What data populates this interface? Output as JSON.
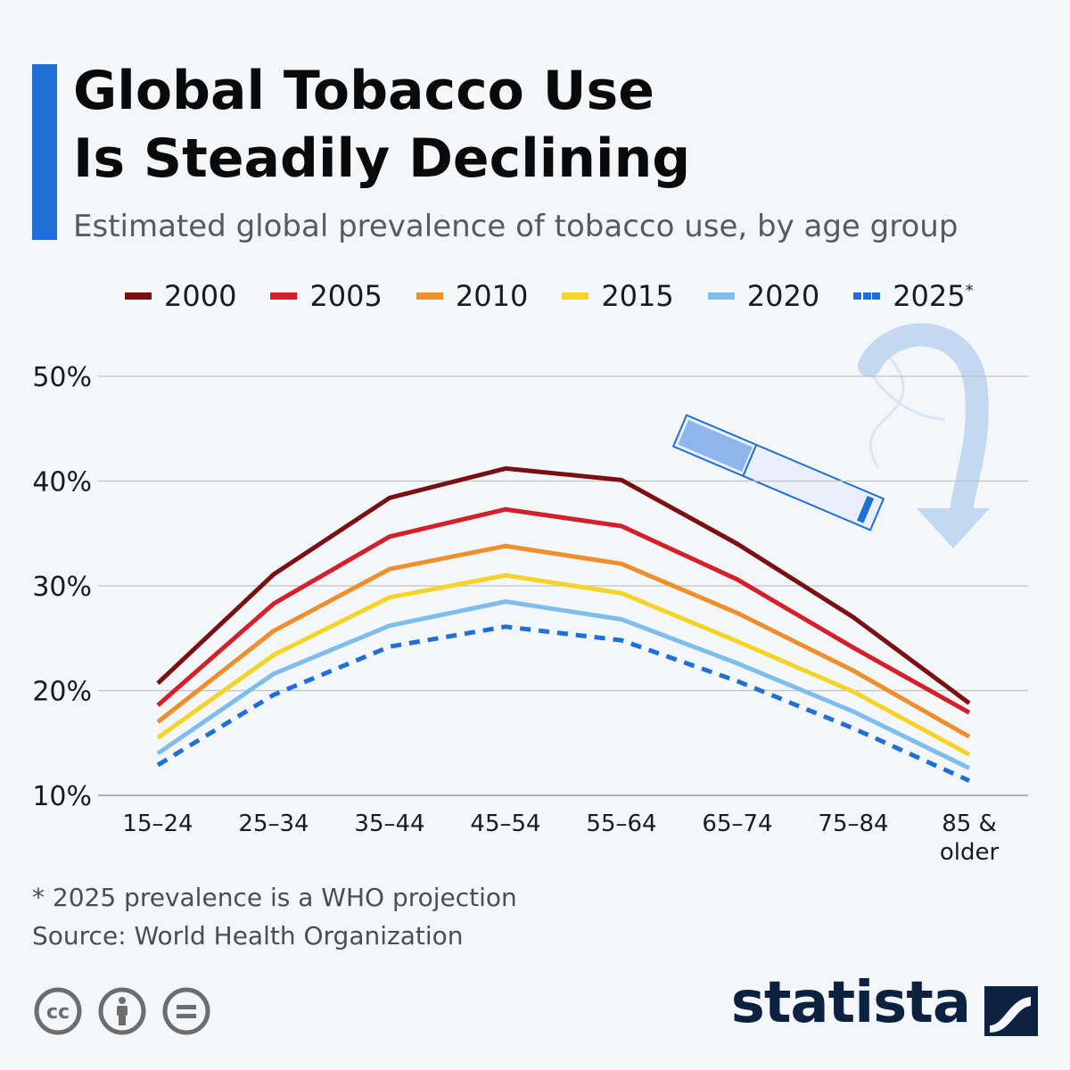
{
  "title_line1": "Global Tobacco Use",
  "title_line2": "Is Steadily Declining",
  "subtitle": "Estimated global prevalence of tobacco use, by age group",
  "footnote": "* 2025 prevalence is a WHO projection",
  "source": "Source: World Health Organization",
  "brand": "statista",
  "icons": [
    "creative-commons-icon",
    "attribution-icon",
    "no-derivatives-icon",
    "cigarette-illustration-icon",
    "smoke-arrow-icon",
    "statista-logo-icon"
  ],
  "colors": {
    "accent": "#1f6fd6",
    "brand": "#0d2240"
  },
  "chart_data": {
    "type": "line",
    "categories": [
      "15–24",
      "25–34",
      "35–44",
      "45–54",
      "55–64",
      "65–74",
      "75–84",
      "85 & older"
    ],
    "category_lines": [
      [
        "15–24"
      ],
      [
        "25–34"
      ],
      [
        "35–44"
      ],
      [
        "45–54"
      ],
      [
        "55–64"
      ],
      [
        "65–74"
      ],
      [
        "75–84"
      ],
      [
        "85 &",
        "older"
      ]
    ],
    "series": [
      {
        "name": "2000",
        "color": "#7b0f12",
        "dashed": false,
        "values": [
          20.7,
          31.1,
          38.4,
          41.2,
          40.1,
          34.0,
          27.0,
          18.8
        ]
      },
      {
        "name": "2005",
        "color": "#d51f2a",
        "dashed": false,
        "values": [
          18.6,
          28.3,
          34.7,
          37.3,
          35.7,
          30.6,
          24.1,
          17.9
        ]
      },
      {
        "name": "2010",
        "color": "#ee8f2c",
        "dashed": false,
        "values": [
          17.0,
          25.7,
          31.6,
          33.8,
          32.1,
          27.4,
          21.9,
          15.6
        ]
      },
      {
        "name": "2015",
        "color": "#f5d327",
        "dashed": false,
        "values": [
          15.5,
          23.4,
          28.9,
          31.0,
          29.3,
          24.7,
          19.9,
          13.9
        ]
      },
      {
        "name": "2020",
        "color": "#7fbdec",
        "dashed": false,
        "values": [
          14.0,
          21.6,
          26.2,
          28.5,
          26.8,
          22.6,
          18.0,
          12.6
        ]
      },
      {
        "name": "2025",
        "legend_sup": "*",
        "color": "#1f6fd6",
        "dashed": true,
        "values": [
          12.9,
          19.6,
          24.2,
          26.1,
          24.8,
          20.9,
          16.4,
          11.4
        ]
      }
    ],
    "yticks": [
      10,
      20,
      30,
      40,
      50
    ],
    "ytick_labels": [
      "10%",
      "20%",
      "30%",
      "40%",
      "50%"
    ],
    "ylim": [
      10,
      50
    ],
    "grid": true,
    "legend_position": "top"
  }
}
